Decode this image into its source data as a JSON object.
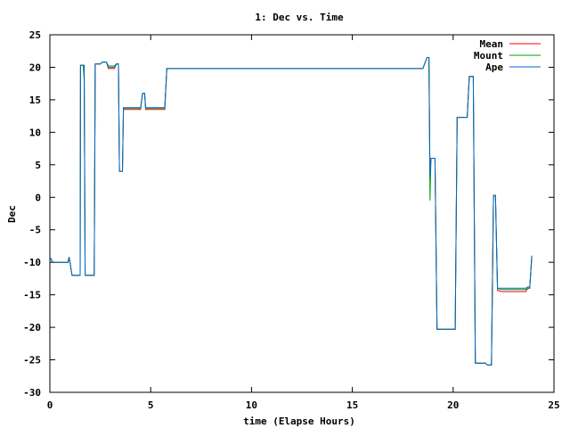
{
  "chart_data": {
    "type": "line",
    "title": "1: Dec vs. Time",
    "xlabel": "time (Elapse Hours)",
    "ylabel": "Dec",
    "xlim": [
      0,
      25
    ],
    "ylim": [
      -30,
      25
    ],
    "xticks": [
      0,
      5,
      10,
      15,
      20,
      25
    ],
    "yticks": [
      -30,
      -25,
      -20,
      -15,
      -10,
      -5,
      0,
      5,
      10,
      15,
      20,
      25
    ],
    "grid": false,
    "legend_position": "top-right",
    "series": [
      {
        "name": "Mean",
        "color": "#ff0000",
        "points": [
          [
            0,
            -9.2
          ],
          [
            0.15,
            -10
          ],
          [
            0.9,
            -10
          ],
          [
            0.95,
            -9.2
          ],
          [
            1.0,
            -10
          ],
          [
            1.1,
            -12
          ],
          [
            1.5,
            -12
          ],
          [
            1.52,
            20.3
          ],
          [
            1.7,
            20.3
          ],
          [
            1.75,
            -12
          ],
          [
            2.2,
            -12
          ],
          [
            2.25,
            20.5
          ],
          [
            2.5,
            20.5
          ],
          [
            2.6,
            20.8
          ],
          [
            2.8,
            20.8
          ],
          [
            2.9,
            19.8
          ],
          [
            3.2,
            19.8
          ],
          [
            3.3,
            20.5
          ],
          [
            3.4,
            20.5
          ],
          [
            3.45,
            4
          ],
          [
            3.6,
            4
          ],
          [
            3.65,
            13.5
          ],
          [
            4.5,
            13.5
          ],
          [
            4.6,
            16
          ],
          [
            4.7,
            16
          ],
          [
            4.75,
            13.5
          ],
          [
            5.7,
            13.5
          ],
          [
            5.8,
            19.8
          ],
          [
            18.5,
            19.8
          ],
          [
            18.7,
            21.5
          ],
          [
            18.8,
            21.5
          ],
          [
            18.85,
            3
          ],
          [
            18.9,
            6
          ],
          [
            19.1,
            6
          ],
          [
            19.2,
            -20.3
          ],
          [
            20.1,
            -20.3
          ],
          [
            20.2,
            12.3
          ],
          [
            20.7,
            12.3
          ],
          [
            20.8,
            18.6
          ],
          [
            21.0,
            18.6
          ],
          [
            21.1,
            -25.5
          ],
          [
            21.6,
            -25.5
          ],
          [
            21.7,
            -25.8
          ],
          [
            21.9,
            -25.8
          ],
          [
            22.0,
            0.3
          ],
          [
            22.1,
            0.3
          ],
          [
            22.2,
            -14.3
          ],
          [
            22.4,
            -14.5
          ],
          [
            23.6,
            -14.5
          ],
          [
            23.7,
            -14
          ],
          [
            23.8,
            -14
          ],
          [
            23.9,
            -9
          ]
        ]
      },
      {
        "name": "Mount",
        "color": "#00a000",
        "points": [
          [
            0,
            -9.2
          ],
          [
            0.15,
            -10
          ],
          [
            0.9,
            -10
          ],
          [
            0.95,
            -9.2
          ],
          [
            1.0,
            -10
          ],
          [
            1.1,
            -12
          ],
          [
            1.5,
            -12
          ],
          [
            1.52,
            20.3
          ],
          [
            1.65,
            20.3
          ],
          [
            1.7,
            18
          ],
          [
            1.75,
            -12
          ],
          [
            2.2,
            -12
          ],
          [
            2.25,
            20.5
          ],
          [
            2.5,
            20.5
          ],
          [
            2.6,
            20.8
          ],
          [
            2.8,
            20.8
          ],
          [
            2.9,
            20
          ],
          [
            3.2,
            20
          ],
          [
            3.3,
            20.5
          ],
          [
            3.4,
            20.5
          ],
          [
            3.45,
            4
          ],
          [
            3.6,
            4
          ],
          [
            3.65,
            13.7
          ],
          [
            4.5,
            13.7
          ],
          [
            4.6,
            16
          ],
          [
            4.7,
            16
          ],
          [
            4.75,
            13.7
          ],
          [
            5.7,
            13.7
          ],
          [
            5.8,
            19.8
          ],
          [
            18.5,
            19.8
          ],
          [
            18.7,
            21.5
          ],
          [
            18.8,
            21.5
          ],
          [
            18.85,
            -0.5
          ],
          [
            18.9,
            6
          ],
          [
            19.1,
            6
          ],
          [
            19.2,
            -20.3
          ],
          [
            20.1,
            -20.3
          ],
          [
            20.2,
            12.3
          ],
          [
            20.7,
            12.3
          ],
          [
            20.8,
            18.6
          ],
          [
            21.0,
            18.6
          ],
          [
            21.1,
            -25.5
          ],
          [
            21.6,
            -25.5
          ],
          [
            21.7,
            -25.8
          ],
          [
            21.9,
            -25.8
          ],
          [
            22.0,
            0.3
          ],
          [
            22.1,
            0.3
          ],
          [
            22.2,
            -14
          ],
          [
            22.4,
            -14.2
          ],
          [
            23.6,
            -14.2
          ],
          [
            23.7,
            -14
          ],
          [
            23.8,
            -14
          ],
          [
            23.9,
            -9
          ]
        ]
      },
      {
        "name": "Ape",
        "color": "#0066cc",
        "points": [
          [
            0,
            -9.2
          ],
          [
            0.15,
            -10
          ],
          [
            0.9,
            -10
          ],
          [
            0.95,
            -9.2
          ],
          [
            1.0,
            -10
          ],
          [
            1.1,
            -12
          ],
          [
            1.5,
            -12
          ],
          [
            1.52,
            20.3
          ],
          [
            1.7,
            20.3
          ],
          [
            1.75,
            -12
          ],
          [
            2.2,
            -12
          ],
          [
            2.25,
            20.5
          ],
          [
            2.5,
            20.5
          ],
          [
            2.6,
            20.8
          ],
          [
            2.8,
            20.8
          ],
          [
            2.9,
            20.2
          ],
          [
            3.2,
            20.2
          ],
          [
            3.3,
            20.5
          ],
          [
            3.4,
            20.5
          ],
          [
            3.45,
            4
          ],
          [
            3.6,
            4
          ],
          [
            3.65,
            13.8
          ],
          [
            4.5,
            13.8
          ],
          [
            4.6,
            16
          ],
          [
            4.7,
            16
          ],
          [
            4.75,
            13.8
          ],
          [
            5.7,
            13.8
          ],
          [
            5.8,
            19.8
          ],
          [
            18.5,
            19.8
          ],
          [
            18.7,
            21.5
          ],
          [
            18.8,
            21.5
          ],
          [
            18.85,
            3
          ],
          [
            18.9,
            6
          ],
          [
            19.1,
            6
          ],
          [
            19.2,
            -20.3
          ],
          [
            20.1,
            -20.3
          ],
          [
            20.2,
            12.3
          ],
          [
            20.7,
            12.3
          ],
          [
            20.8,
            18.6
          ],
          [
            21.0,
            18.6
          ],
          [
            21.1,
            -25.5
          ],
          [
            21.6,
            -25.5
          ],
          [
            21.7,
            -25.8
          ],
          [
            21.9,
            -25.8
          ],
          [
            22.0,
            0.3
          ],
          [
            22.1,
            0.3
          ],
          [
            22.2,
            -14
          ],
          [
            22.4,
            -14
          ],
          [
            23.6,
            -14
          ],
          [
            23.7,
            -13.8
          ],
          [
            23.8,
            -13.8
          ],
          [
            23.9,
            -9
          ]
        ]
      }
    ]
  }
}
